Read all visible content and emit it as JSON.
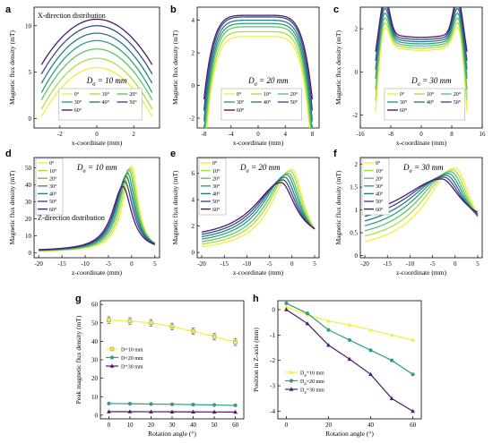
{
  "colors": [
    "#f2ef3b",
    "#a8de4a",
    "#5fc567",
    "#2f9e84",
    "#2c7a8a",
    "#3b4e8c",
    "#4a1a6e"
  ],
  "chart_data": [
    {
      "id": "a",
      "type": "line",
      "panel_label": "a",
      "annotation": "X-direction distribution",
      "da_label": "D",
      "da_sub": "a",
      "da_value": " = 10 mm",
      "xlabel": "x-coordinate (mm)",
      "ylabel": "Magnetic flux density (mT)",
      "xlim": [
        -3.4,
        3.4
      ],
      "ylim": [
        -1,
        12
      ],
      "xticks": [
        -2,
        0,
        2
      ],
      "yticks": [
        0,
        5,
        10
      ],
      "legend": [
        "0°",
        "10°",
        "20°",
        "30°",
        "40°",
        "50°",
        "60°"
      ],
      "legend_cols": 3,
      "shape": "parabola",
      "x0": -3,
      "x1": 3,
      "series": [
        {
          "name": "0°",
          "peak": 5.5,
          "edge": 0.2
        },
        {
          "name": "10°",
          "peak": 6.5,
          "edge": 1.0
        },
        {
          "name": "20°",
          "peak": 7.5,
          "edge": 2.0
        },
        {
          "name": "30°",
          "peak": 8.4,
          "edge": 2.8
        },
        {
          "name": "40°",
          "peak": 9.2,
          "edge": 3.8
        },
        {
          "name": "50°",
          "peak": 10.0,
          "edge": 4.8
        },
        {
          "name": "60°",
          "peak": 10.7,
          "edge": 5.8
        }
      ]
    },
    {
      "id": "b",
      "type": "line",
      "panel_label": "b",
      "da_label": "D",
      "da_sub": "a",
      "da_value": " = 20 mm",
      "xlabel": "x-coordinate (mm)",
      "ylabel": "Magnetic flux density (mT)",
      "xlim": [
        -9,
        9
      ],
      "ylim": [
        -2.6,
        4.8
      ],
      "xticks": [
        -8,
        -4,
        0,
        4,
        8
      ],
      "yticks": [
        -2,
        0,
        2,
        4
      ],
      "legend": [
        "0°",
        "10°",
        "20°",
        "30°",
        "40°",
        "50°",
        "60°"
      ],
      "legend_cols": 3,
      "shape": "plateau",
      "x0": -8,
      "x1": 8,
      "halfwidth": 7.5,
      "series": [
        {
          "name": "0°",
          "peak": 3.0,
          "edge": -2.2
        },
        {
          "name": "10°",
          "peak": 3.3,
          "edge": -1.7
        },
        {
          "name": "20°",
          "peak": 3.6,
          "edge": -1.2
        },
        {
          "name": "30°",
          "peak": 3.8,
          "edge": -0.7
        },
        {
          "name": "40°",
          "peak": 4.0,
          "edge": -0.2
        },
        {
          "name": "50°",
          "peak": 4.2,
          "edge": 0.3
        },
        {
          "name": "60°",
          "peak": 4.3,
          "edge": 0.8
        }
      ]
    },
    {
      "id": "c",
      "type": "line",
      "panel_label": "c",
      "da_label": "D",
      "da_sub": "a",
      "da_value": " = 30 mm",
      "xlabel": "x-coordinate (mm)",
      "ylabel": "Magnetic flux density (mT)",
      "xlim": [
        -16,
        16
      ],
      "ylim": [
        -2.6,
        3.0
      ],
      "xticks": [
        -16,
        -8,
        0,
        8,
        16
      ],
      "yticks": [
        -2,
        0,
        2
      ],
      "legend": [
        "0°",
        "10°",
        "20°",
        "30°",
        "40°",
        "50°",
        "60°"
      ],
      "legend_cols": 3,
      "shape": "saddle",
      "x0": -12,
      "x1": 12,
      "series": [
        {
          "name": "0°",
          "mid": 1.0,
          "edge": -2.3,
          "horn": 1.4
        },
        {
          "name": "10°",
          "mid": 1.1,
          "edge": -1.8,
          "horn": 1.6
        },
        {
          "name": "20°",
          "mid": 1.2,
          "edge": -1.3,
          "horn": 1.8
        },
        {
          "name": "30°",
          "mid": 1.3,
          "edge": -0.8,
          "horn": 2.0
        },
        {
          "name": "40°",
          "mid": 1.4,
          "edge": -0.4,
          "horn": 2.2
        },
        {
          "name": "50°",
          "mid": 1.5,
          "edge": 0.0,
          "horn": 2.4
        },
        {
          "name": "60°",
          "mid": 1.6,
          "edge": 0.4,
          "horn": 2.7
        }
      ]
    },
    {
      "id": "d",
      "type": "line",
      "panel_label": "d",
      "annotation": "Z-direction distribution",
      "da_label": "D",
      "da_sub": "a",
      "da_value": " = 10 mm",
      "xlabel": "z-coordinate (mm)",
      "ylabel": "Magnetic flux density (mT)",
      "xlim": [
        -21,
        6
      ],
      "ylim": [
        -3,
        56
      ],
      "xticks": [
        -20,
        -15,
        -10,
        -5,
        0,
        5
      ],
      "yticks": [
        0,
        10,
        20,
        30,
        40,
        50
      ],
      "legend": [
        "0°",
        "10°",
        "20°",
        "30°",
        "40°",
        "50°",
        "60°"
      ],
      "legend_cols": 1,
      "shape": "peak",
      "x0": -20,
      "x1": 5,
      "series": [
        {
          "name": "0°",
          "center": 0.0,
          "peak": 51,
          "base": 0.3,
          "wl": 2.2,
          "wr": 1.7
        },
        {
          "name": "10°",
          "center": -0.3,
          "peak": 50,
          "base": 0.4,
          "wl": 2.3,
          "wr": 1.8
        },
        {
          "name": "20°",
          "center": -0.6,
          "peak": 49,
          "base": 0.5,
          "wl": 2.4,
          "wr": 1.9
        },
        {
          "name": "30°",
          "center": -0.9,
          "peak": 47,
          "base": 0.6,
          "wl": 2.5,
          "wr": 2.0
        },
        {
          "name": "40°",
          "center": -1.2,
          "peak": 45,
          "base": 0.7,
          "wl": 2.6,
          "wr": 2.1
        },
        {
          "name": "50°",
          "center": -1.5,
          "peak": 42,
          "base": 0.8,
          "wl": 2.7,
          "wr": 2.2
        },
        {
          "name": "60°",
          "center": -1.9,
          "peak": 39,
          "base": 0.9,
          "wl": 2.8,
          "wr": 2.3
        }
      ]
    },
    {
      "id": "e",
      "type": "line",
      "panel_label": "e",
      "da_label": "D",
      "da_sub": "a",
      "da_value": " = 20 mm",
      "xlabel": "z-coordinate (mm)",
      "ylabel": "Magnetic flux density (mT)",
      "xlim": [
        -21,
        6
      ],
      "ylim": [
        -0.4,
        7.2
      ],
      "xticks": [
        -20,
        -15,
        -10,
        -5,
        0,
        5
      ],
      "yticks": [
        0,
        2,
        4,
        6
      ],
      "legend": [
        "0°",
        "10°",
        "20°",
        "30°",
        "40°",
        "50°",
        "60°"
      ],
      "legend_cols": 1,
      "shape": "peak",
      "x0": -20,
      "x1": 5,
      "series": [
        {
          "name": "0°",
          "center": 0.0,
          "peak": 6.3,
          "base": 0.0,
          "wl": 5.5,
          "wr": 3.2
        },
        {
          "name": "10°",
          "center": -0.4,
          "peak": 6.2,
          "base": 0.15,
          "wl": 5.8,
          "wr": 3.3
        },
        {
          "name": "20°",
          "center": -0.8,
          "peak": 6.0,
          "base": 0.3,
          "wl": 6.1,
          "wr": 3.4
        },
        {
          "name": "30°",
          "center": -1.2,
          "peak": 5.9,
          "base": 0.45,
          "wl": 6.4,
          "wr": 3.5
        },
        {
          "name": "40°",
          "center": -1.6,
          "peak": 5.7,
          "base": 0.6,
          "wl": 6.7,
          "wr": 3.6
        },
        {
          "name": "50°",
          "center": -2.0,
          "peak": 5.5,
          "base": 0.75,
          "wl": 7.0,
          "wr": 3.7
        },
        {
          "name": "60°",
          "center": -2.4,
          "peak": 5.3,
          "base": 0.9,
          "wl": 7.3,
          "wr": 3.8
        }
      ]
    },
    {
      "id": "f",
      "type": "line",
      "panel_label": "f",
      "da_label": "D",
      "da_sub": "a",
      "da_value": " = 30 mm",
      "xlabel": "z-coordinate (mm)",
      "ylabel": "Magnetic flux density (mT)",
      "xlim": [
        -21,
        6
      ],
      "ylim": [
        -0.05,
        2.15
      ],
      "xticks": [
        -20,
        -15,
        -10,
        -5,
        0,
        5
      ],
      "yticks": [
        0.0,
        0.5,
        1.0,
        1.5,
        2.0
      ],
      "legend": [
        "0°",
        "10°",
        "20°",
        "30°",
        "40°",
        "50°",
        "60°"
      ],
      "legend_cols": 1,
      "shape": "peak",
      "x0": -20,
      "x1": 5,
      "series": [
        {
          "name": "0°",
          "center": 0.0,
          "peak": 1.92,
          "base": 0.05,
          "wl": 8.0,
          "wr": 4.5
        },
        {
          "name": "10°",
          "center": -0.5,
          "peak": 1.88,
          "base": 0.15,
          "wl": 8.5,
          "wr": 4.6
        },
        {
          "name": "20°",
          "center": -1.0,
          "peak": 1.84,
          "base": 0.25,
          "wl": 9.0,
          "wr": 4.7
        },
        {
          "name": "30°",
          "center": -1.5,
          "peak": 1.8,
          "base": 0.35,
          "wl": 9.5,
          "wr": 4.8
        },
        {
          "name": "40°",
          "center": -2.0,
          "peak": 1.76,
          "base": 0.45,
          "wl": 10.0,
          "wr": 4.9
        },
        {
          "name": "50°",
          "center": -2.5,
          "peak": 1.72,
          "base": 0.55,
          "wl": 10.5,
          "wr": 5.0
        },
        {
          "name": "60°",
          "center": -3.0,
          "peak": 1.68,
          "base": 0.65,
          "wl": 11.0,
          "wr": 5.1
        }
      ]
    },
    {
      "id": "g",
      "type": "line",
      "panel_label": "g",
      "xlabel": "Rotation angle (°)",
      "ylabel": "Peak magnetic flux density (mT)",
      "xlim": [
        -4,
        64
      ],
      "ylim": [
        -2,
        62
      ],
      "xticks": [
        0,
        10,
        20,
        30,
        40,
        50,
        60
      ],
      "yticks": [
        0,
        10,
        20,
        30,
        40,
        50,
        60
      ],
      "x": [
        0,
        10,
        20,
        30,
        40,
        50,
        60
      ],
      "series": [
        {
          "name": "D=10 mm",
          "color": "#f2ef3b",
          "marker": "square",
          "values": [
            51.5,
            51,
            50,
            48,
            45.5,
            42.5,
            39.5
          ],
          "err": [
            1.8,
            1.8,
            1.8,
            1.8,
            1.8,
            1.8,
            1.8
          ]
        },
        {
          "name": "D=20 mm",
          "color": "#2f9e84",
          "marker": "circle",
          "values": [
            6.3,
            6.2,
            6.0,
            5.9,
            5.7,
            5.5,
            5.3
          ],
          "err": [
            0,
            0,
            0,
            0,
            0,
            0,
            0
          ]
        },
        {
          "name": "D=30 mm",
          "color": "#4a1a6e",
          "marker": "triangle",
          "values": [
            1.9,
            1.88,
            1.84,
            1.8,
            1.76,
            1.72,
            1.68
          ],
          "err": [
            0,
            0,
            0,
            0,
            0,
            0,
            0
          ]
        }
      ]
    },
    {
      "id": "h",
      "type": "line",
      "panel_label": "h",
      "xlabel": "Rotation angle (°)",
      "ylabel": "Position in Z-axis (mm)",
      "xlim": [
        -4,
        64
      ],
      "ylim": [
        -4.3,
        0.35
      ],
      "xticks": [
        0,
        20,
        40,
        60
      ],
      "yticks": [
        0,
        -1,
        -2,
        -3,
        -4
      ],
      "x": [
        0,
        10,
        20,
        30,
        40,
        50,
        60
      ],
      "series": [
        {
          "name": "D",
          "sub": "a",
          "tail": "=10 mm",
          "color": "#f2ef3b",
          "marker": "triangle",
          "values": [
            0.1,
            -0.2,
            -0.45,
            -0.6,
            -0.8,
            -1.0,
            -1.2
          ]
        },
        {
          "name": "D",
          "sub": "a",
          "tail": "=20 mm",
          "color": "#2f9e84",
          "marker": "circle",
          "values": [
            0.25,
            -0.15,
            -0.8,
            -1.2,
            -1.6,
            -2.0,
            -2.55
          ]
        },
        {
          "name": "D",
          "sub": "a",
          "tail": "=30 mm",
          "color": "#4a1a6e",
          "marker": "triangle",
          "values": [
            0.0,
            -0.55,
            -1.4,
            -1.95,
            -2.55,
            -3.5,
            -4.0
          ]
        }
      ]
    }
  ]
}
